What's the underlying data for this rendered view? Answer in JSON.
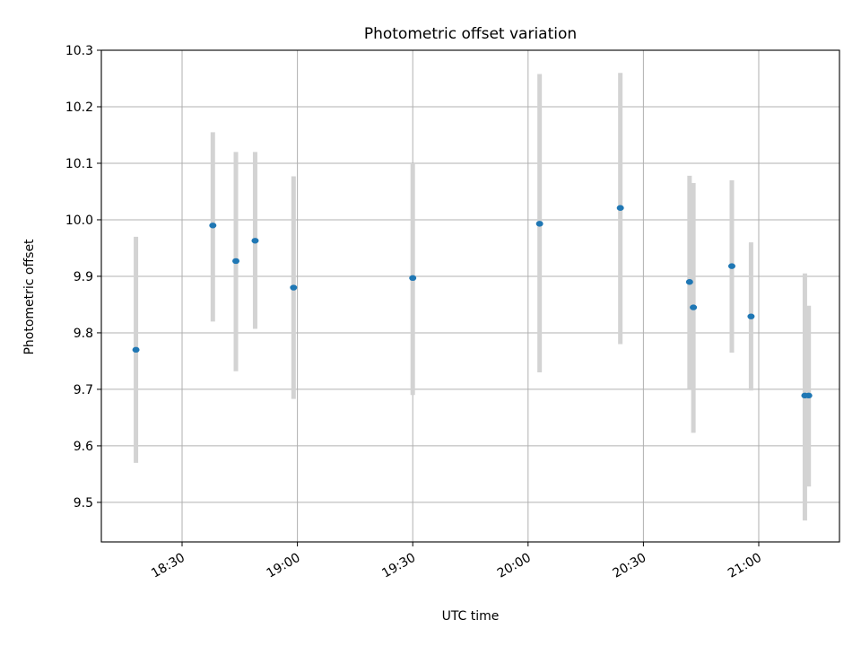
{
  "chart_data": {
    "type": "scatter",
    "title": "Photometric offset variation",
    "xlabel": "UTC time",
    "ylabel": "Photometric offset",
    "x_axis_type": "time",
    "xlim": [
      "18:09",
      "21:21"
    ],
    "ylim": [
      9.43,
      10.3
    ],
    "xticks": [
      "18:30",
      "19:00",
      "19:30",
      "20:00",
      "20:30",
      "21:00"
    ],
    "yticks": [
      "9.5",
      "9.6",
      "9.7",
      "9.8",
      "9.9",
      "10.0",
      "10.1",
      "10.2",
      "10.3"
    ],
    "grid": true,
    "errorbar_color": "#d3d3d3",
    "marker_color": "#1f77b4",
    "points": [
      {
        "time": "18:18",
        "value": 9.77,
        "err_low": 9.57,
        "err_high": 9.97
      },
      {
        "time": "18:38",
        "value": 9.99,
        "err_low": 9.82,
        "err_high": 10.155
      },
      {
        "time": "18:44",
        "value": 9.927,
        "err_low": 9.732,
        "err_high": 10.12
      },
      {
        "time": "18:49",
        "value": 9.963,
        "err_low": 9.807,
        "err_high": 10.12
      },
      {
        "time": "18:59",
        "value": 9.88,
        "err_low": 9.683,
        "err_high": 10.077
      },
      {
        "time": "19:30",
        "value": 9.897,
        "err_low": 9.69,
        "err_high": 10.1
      },
      {
        "time": "20:03",
        "value": 9.993,
        "err_low": 9.73,
        "err_high": 10.258
      },
      {
        "time": "20:24",
        "value": 10.021,
        "err_low": 9.78,
        "err_high": 10.26
      },
      {
        "time": "20:42",
        "value": 9.89,
        "err_low": 9.7,
        "err_high": 10.078
      },
      {
        "time": "20:43",
        "value": 9.845,
        "err_low": 9.623,
        "err_high": 10.065
      },
      {
        "time": "20:53",
        "value": 9.918,
        "err_low": 9.765,
        "err_high": 10.07
      },
      {
        "time": "20:58",
        "value": 9.829,
        "err_low": 9.698,
        "err_high": 9.96
      },
      {
        "time": "21:12",
        "value": 9.689,
        "err_low": 9.468,
        "err_high": 9.905
      },
      {
        "time": "21:13",
        "value": 9.689,
        "err_low": 9.528,
        "err_high": 9.848
      }
    ]
  }
}
